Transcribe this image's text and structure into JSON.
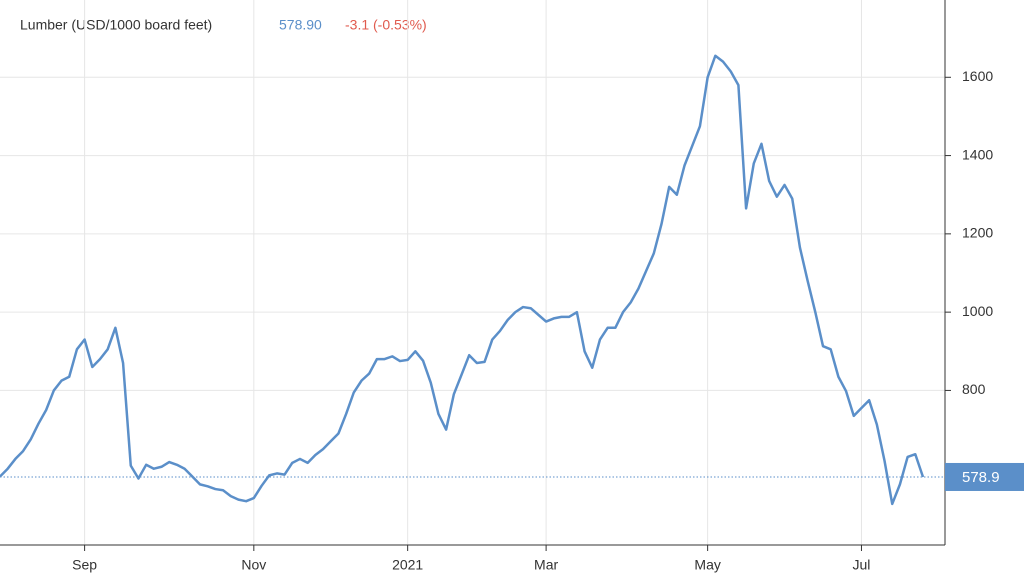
{
  "chart_data": {
    "type": "line",
    "title": "Lumber (USD/1000 board feet)",
    "price_label": "578.90",
    "change_label": "-3.1 (-0.53%)",
    "categories": [
      null,
      null,
      null,
      null,
      null,
      null,
      null,
      null,
      null,
      null,
      null,
      "Sep",
      null,
      null,
      null,
      null,
      null,
      null,
      null,
      null,
      null,
      null,
      null,
      null,
      null,
      null,
      null,
      null,
      null,
      null,
      null,
      null,
      null,
      "Nov",
      null,
      null,
      null,
      null,
      null,
      null,
      null,
      null,
      null,
      null,
      null,
      null,
      null,
      null,
      null,
      null,
      null,
      null,
      null,
      "2021",
      null,
      null,
      null,
      null,
      null,
      null,
      null,
      null,
      null,
      null,
      null,
      null,
      null,
      null,
      null,
      null,
      null,
      "Mar",
      null,
      null,
      null,
      null,
      null,
      null,
      null,
      null,
      null,
      null,
      null,
      null,
      null,
      null,
      null,
      null,
      null,
      null,
      null,
      null,
      "May",
      null,
      null,
      null,
      null,
      null,
      null,
      null,
      null,
      null,
      null,
      null,
      null,
      null,
      null,
      null,
      null,
      null,
      null,
      null,
      "Jul",
      null,
      null,
      null,
      null,
      null,
      null,
      null,
      null
    ],
    "series": [
      {
        "color": "#5b8fc9",
        "values": [
          580,
          600,
          625,
          645,
          675,
          715,
          750,
          800,
          825,
          835,
          905,
          930,
          860,
          880,
          905,
          960,
          870,
          608,
          575,
          610,
          600,
          605,
          617,
          610,
          600,
          580,
          560,
          555,
          548,
          545,
          530,
          521,
          517,
          525,
          556,
          583,
          588,
          585,
          615,
          625,
          615,
          635,
          650,
          670,
          690,
          740,
          795,
          825,
          843,
          880,
          880,
          887,
          875,
          878,
          900,
          876,
          820,
          740,
          700,
          790,
          840,
          890,
          870,
          873,
          930,
          952,
          980,
          1000,
          1013,
          1010,
          993,
          976,
          984,
          988,
          988,
          1000,
          900,
          858,
          930,
          960,
          960,
          1000,
          1025,
          1060,
          1105,
          1150,
          1225,
          1320,
          1300,
          1375,
          1425,
          1475,
          1600,
          1655,
          1640,
          1615,
          1580,
          1265,
          1380,
          1430,
          1335,
          1295,
          1325,
          1290,
          1165,
          1080,
          1000,
          913,
          905,
          835,
          798,
          735,
          755,
          775,
          713,
          620,
          510,
          560,
          630,
          637,
          578.9
        ]
      }
    ],
    "ylim": [
      400,
      1800
    ],
    "yticks": [
      800,
      1000,
      1200,
      1400,
      1600
    ],
    "grid": true
  }
}
